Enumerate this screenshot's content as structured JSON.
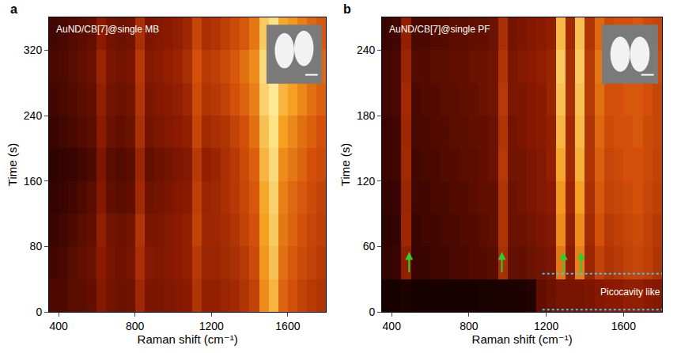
{
  "chart_data": [
    {
      "type": "heatmap",
      "panel": "a",
      "title": "AuND/CB[7]@single MB",
      "x_label": "Raman shift (cm⁻¹)",
      "y_label": "Time (s)",
      "xlim": [
        350,
        1800
      ],
      "ylim": [
        0,
        360
      ],
      "xticks": [
        400,
        800,
        1200,
        1600
      ],
      "yticks": [
        0,
        80,
        160,
        240,
        320
      ],
      "zlim": [
        0,
        1
      ],
      "x": [
        375,
        425,
        475,
        525,
        575,
        625,
        675,
        725,
        775,
        825,
        875,
        925,
        975,
        1025,
        1075,
        1125,
        1175,
        1225,
        1275,
        1325,
        1375,
        1425,
        1475,
        1525,
        1575,
        1625,
        1675,
        1725,
        1775
      ],
      "y": [
        20,
        60,
        100,
        140,
        180,
        220,
        260,
        300,
        340
      ],
      "z": [
        [
          0.25,
          0.25,
          0.28,
          0.28,
          0.3,
          0.38,
          0.34,
          0.32,
          0.33,
          0.45,
          0.36,
          0.36,
          0.37,
          0.38,
          0.4,
          0.5,
          0.42,
          0.42,
          0.44,
          0.46,
          0.5,
          0.55,
          0.75,
          0.85,
          0.65,
          0.6,
          0.55,
          0.52,
          0.5
        ],
        [
          0.22,
          0.24,
          0.27,
          0.3,
          0.32,
          0.4,
          0.35,
          0.33,
          0.35,
          0.48,
          0.38,
          0.37,
          0.38,
          0.4,
          0.42,
          0.52,
          0.44,
          0.44,
          0.46,
          0.48,
          0.52,
          0.58,
          0.78,
          0.88,
          0.68,
          0.62,
          0.58,
          0.55,
          0.52
        ],
        [
          0.2,
          0.22,
          0.25,
          0.28,
          0.3,
          0.42,
          0.34,
          0.32,
          0.34,
          0.5,
          0.36,
          0.36,
          0.38,
          0.4,
          0.42,
          0.55,
          0.45,
          0.45,
          0.47,
          0.5,
          0.55,
          0.6,
          0.8,
          0.9,
          0.7,
          0.65,
          0.6,
          0.56,
          0.54
        ],
        [
          0.18,
          0.2,
          0.22,
          0.25,
          0.28,
          0.38,
          0.3,
          0.28,
          0.3,
          0.46,
          0.33,
          0.34,
          0.36,
          0.38,
          0.4,
          0.54,
          0.44,
          0.45,
          0.48,
          0.52,
          0.56,
          0.62,
          0.82,
          0.92,
          0.72,
          0.66,
          0.62,
          0.58,
          0.55
        ],
        [
          0.16,
          0.18,
          0.2,
          0.22,
          0.25,
          0.36,
          0.28,
          0.26,
          0.28,
          0.44,
          0.3,
          0.32,
          0.34,
          0.36,
          0.38,
          0.52,
          0.42,
          0.44,
          0.48,
          0.52,
          0.58,
          0.64,
          0.85,
          0.94,
          0.75,
          0.7,
          0.65,
          0.6,
          0.58
        ],
        [
          0.2,
          0.22,
          0.24,
          0.26,
          0.28,
          0.4,
          0.32,
          0.3,
          0.32,
          0.48,
          0.34,
          0.36,
          0.38,
          0.4,
          0.42,
          0.56,
          0.46,
          0.48,
          0.5,
          0.55,
          0.6,
          0.68,
          0.88,
          0.96,
          0.8,
          0.74,
          0.68,
          0.64,
          0.6
        ],
        [
          0.22,
          0.24,
          0.26,
          0.28,
          0.3,
          0.42,
          0.34,
          0.32,
          0.34,
          0.5,
          0.36,
          0.38,
          0.4,
          0.42,
          0.45,
          0.58,
          0.5,
          0.52,
          0.55,
          0.6,
          0.65,
          0.72,
          0.92,
          0.98,
          0.85,
          0.8,
          0.74,
          0.68,
          0.64
        ],
        [
          0.24,
          0.25,
          0.27,
          0.3,
          0.32,
          0.44,
          0.36,
          0.34,
          0.36,
          0.52,
          0.38,
          0.4,
          0.42,
          0.44,
          0.48,
          0.6,
          0.52,
          0.54,
          0.58,
          0.62,
          0.68,
          0.75,
          0.94,
          1.0,
          0.88,
          0.82,
          0.76,
          0.7,
          0.66
        ],
        [
          0.22,
          0.24,
          0.26,
          0.28,
          0.3,
          0.4,
          0.34,
          0.32,
          0.34,
          0.48,
          0.36,
          0.38,
          0.4,
          0.42,
          0.45,
          0.56,
          0.48,
          0.5,
          0.54,
          0.58,
          0.62,
          0.7,
          0.9,
          0.96,
          0.82,
          0.78,
          0.72,
          0.66,
          0.62
        ]
      ]
    },
    {
      "type": "heatmap",
      "panel": "b",
      "title": "AuND/CB[7]@single PF",
      "x_label": "Raman shift (cm⁻¹)",
      "y_label": "Time (s)",
      "xlim": [
        350,
        1800
      ],
      "ylim": [
        0,
        270
      ],
      "xticks": [
        400,
        800,
        1200,
        1600
      ],
      "yticks": [
        0,
        60,
        120,
        180,
        240
      ],
      "zlim": [
        0,
        1
      ],
      "x": [
        375,
        425,
        475,
        525,
        575,
        625,
        675,
        725,
        775,
        825,
        875,
        925,
        975,
        1025,
        1075,
        1125,
        1175,
        1225,
        1275,
        1325,
        1375,
        1425,
        1475,
        1525,
        1575,
        1625,
        1675,
        1725,
        1775
      ],
      "y": [
        15,
        45,
        75,
        105,
        135,
        165,
        195,
        225,
        255
      ],
      "z": [
        [
          0.08,
          0.08,
          0.1,
          0.08,
          0.08,
          0.08,
          0.08,
          0.08,
          0.08,
          0.08,
          0.09,
          0.09,
          0.1,
          0.1,
          0.1,
          0.12,
          0.3,
          0.32,
          0.35,
          0.35,
          0.35,
          0.36,
          0.38,
          0.4,
          0.4,
          0.42,
          0.42,
          0.4,
          0.38
        ],
        [
          0.18,
          0.2,
          0.42,
          0.2,
          0.2,
          0.22,
          0.22,
          0.24,
          0.24,
          0.26,
          0.26,
          0.28,
          0.48,
          0.3,
          0.3,
          0.32,
          0.34,
          0.36,
          0.7,
          0.4,
          0.72,
          0.44,
          0.55,
          0.5,
          0.52,
          0.55,
          0.56,
          0.54,
          0.5
        ],
        [
          0.16,
          0.18,
          0.45,
          0.2,
          0.22,
          0.22,
          0.24,
          0.24,
          0.26,
          0.26,
          0.28,
          0.3,
          0.5,
          0.32,
          0.32,
          0.34,
          0.36,
          0.38,
          0.75,
          0.42,
          0.75,
          0.46,
          0.6,
          0.52,
          0.54,
          0.56,
          0.58,
          0.55,
          0.52
        ],
        [
          0.18,
          0.2,
          0.44,
          0.22,
          0.22,
          0.24,
          0.24,
          0.26,
          0.26,
          0.28,
          0.3,
          0.3,
          0.5,
          0.32,
          0.34,
          0.36,
          0.38,
          0.4,
          0.78,
          0.44,
          0.8,
          0.48,
          0.62,
          0.55,
          0.56,
          0.58,
          0.6,
          0.56,
          0.54
        ],
        [
          0.2,
          0.22,
          0.46,
          0.22,
          0.24,
          0.24,
          0.26,
          0.26,
          0.28,
          0.28,
          0.3,
          0.32,
          0.52,
          0.34,
          0.34,
          0.36,
          0.38,
          0.42,
          0.82,
          0.46,
          0.84,
          0.5,
          0.64,
          0.56,
          0.58,
          0.6,
          0.6,
          0.58,
          0.55
        ],
        [
          0.2,
          0.22,
          0.45,
          0.24,
          0.24,
          0.26,
          0.26,
          0.28,
          0.28,
          0.3,
          0.3,
          0.32,
          0.5,
          0.34,
          0.36,
          0.38,
          0.4,
          0.42,
          0.85,
          0.46,
          0.86,
          0.5,
          0.66,
          0.58,
          0.6,
          0.6,
          0.62,
          0.58,
          0.56
        ],
        [
          0.22,
          0.24,
          0.46,
          0.24,
          0.26,
          0.26,
          0.28,
          0.28,
          0.3,
          0.3,
          0.32,
          0.34,
          0.52,
          0.36,
          0.36,
          0.38,
          0.4,
          0.44,
          0.88,
          0.48,
          0.88,
          0.52,
          0.68,
          0.6,
          0.6,
          0.62,
          0.62,
          0.6,
          0.56
        ],
        [
          0.22,
          0.24,
          0.44,
          0.26,
          0.26,
          0.28,
          0.28,
          0.3,
          0.3,
          0.32,
          0.32,
          0.34,
          0.5,
          0.36,
          0.38,
          0.4,
          0.42,
          0.44,
          0.9,
          0.48,
          0.9,
          0.52,
          0.7,
          0.6,
          0.62,
          0.62,
          0.64,
          0.6,
          0.58
        ],
        [
          0.2,
          0.22,
          0.42,
          0.24,
          0.24,
          0.26,
          0.26,
          0.28,
          0.28,
          0.3,
          0.3,
          0.32,
          0.48,
          0.34,
          0.36,
          0.38,
          0.4,
          0.42,
          0.86,
          0.46,
          0.88,
          0.5,
          0.66,
          0.58,
          0.6,
          0.6,
          0.62,
          0.58,
          0.56
        ]
      ],
      "arrows": [
        {
          "x": 490,
          "y0": 35,
          "y1": 55
        },
        {
          "x": 970,
          "y0": 35,
          "y1": 55
        },
        {
          "x": 1290,
          "y0": 35,
          "y1": 55
        },
        {
          "x": 1380,
          "y0": 35,
          "y1": 55
        }
      ],
      "region": {
        "label": "Picocavity like",
        "x0": 1180,
        "x1": 1800,
        "y0": 2,
        "y1": 35
      }
    }
  ]
}
